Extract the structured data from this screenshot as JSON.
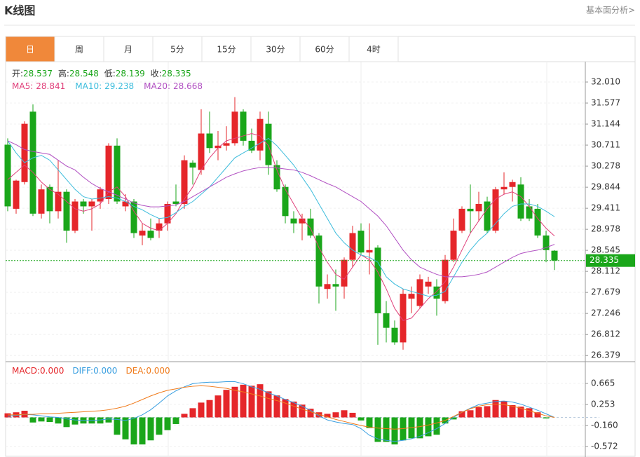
{
  "header": {
    "title": "K线图",
    "link": "基本面分析>"
  },
  "tabs": {
    "items": [
      "日",
      "周",
      "月",
      "5分",
      "15分",
      "30分",
      "60分",
      "4时"
    ],
    "active": 0
  },
  "chart_data": [
    {
      "type": "candlestick",
      "ohlc_labels": [
        "开:",
        "高:",
        "低:",
        "收:"
      ],
      "up_color": "#e5262a",
      "down_color": "#1aa61a",
      "open": [
        30.72,
        29.4,
        29.95,
        31.4,
        29.3,
        29.85,
        29.35,
        29.75,
        28.95,
        29.55,
        29.45,
        29.55,
        29.6,
        30.7,
        29.45,
        29.55,
        28.85,
        28.95,
        28.95,
        29.1,
        29.55,
        29.5,
        30.35,
        30.2,
        30.95,
        30.65,
        30.7,
        30.75,
        31.4,
        30.8,
        30.6,
        31.15,
        30.3,
        29.85,
        29.2,
        29.1,
        29.2,
        28.85,
        27.75,
        27.85,
        27.8,
        28.35,
        28.95,
        28.5,
        28.6,
        27.25,
        26.95,
        26.65,
        27.55,
        27.4,
        27.8,
        27.8,
        27.5,
        28.35,
        28.95,
        29.4,
        29.35,
        29.55,
        28.95,
        29.8,
        29.85,
        29.9,
        29.45,
        29.4,
        28.85,
        28.537
      ],
      "high": [
        30.85,
        30.0,
        31.2,
        31.55,
        29.9,
        29.9,
        30.4,
        29.8,
        29.6,
        29.6,
        29.6,
        29.85,
        30.75,
        30.85,
        29.7,
        29.6,
        29.1,
        29.2,
        29.2,
        29.55,
        29.9,
        30.5,
        30.4,
        31.45,
        31.4,
        31.0,
        31.1,
        31.7,
        31.45,
        31.05,
        31.4,
        31.4,
        30.4,
        29.9,
        29.35,
        29.3,
        29.4,
        28.9,
        28.05,
        28.15,
        28.4,
        29.05,
        29.1,
        29.1,
        28.65,
        27.5,
        27.1,
        27.75,
        27.8,
        28.05,
        28.0,
        27.95,
        28.45,
        29.2,
        29.45,
        29.9,
        29.75,
        29.65,
        29.85,
        30.15,
        30.0,
        30.05,
        29.6,
        29.5,
        28.95,
        28.548
      ],
      "low": [
        29.35,
        29.3,
        29.9,
        29.25,
        29.2,
        29.1,
        29.2,
        28.7,
        28.9,
        29.3,
        28.95,
        29.4,
        29.5,
        29.5,
        29.35,
        28.8,
        28.65,
        28.75,
        28.8,
        28.95,
        29.45,
        29.4,
        29.9,
        30.1,
        30.55,
        30.4,
        30.6,
        30.7,
        30.7,
        30.55,
        30.4,
        30.1,
        29.75,
        29.1,
        28.9,
        28.75,
        28.8,
        27.45,
        27.55,
        27.3,
        27.55,
        28.2,
        28.45,
        28.05,
        26.6,
        26.65,
        26.6,
        26.5,
        27.25,
        27.35,
        27.65,
        27.2,
        27.45,
        28.3,
        28.9,
        28.9,
        29.15,
        28.9,
        28.9,
        29.7,
        29.55,
        29.15,
        29.15,
        28.8,
        28.3,
        28.139
      ],
      "close": [
        29.45,
        29.98,
        31.15,
        29.3,
        29.8,
        29.35,
        29.75,
        28.95,
        29.55,
        29.45,
        29.55,
        29.8,
        30.7,
        29.55,
        29.55,
        28.9,
        28.95,
        28.8,
        29.1,
        29.5,
        29.5,
        30.4,
        30.25,
        30.95,
        30.65,
        30.7,
        30.75,
        31.4,
        30.8,
        30.6,
        31.25,
        30.3,
        29.8,
        29.25,
        29.1,
        29.2,
        28.85,
        27.8,
        27.85,
        27.8,
        28.35,
        28.9,
        28.5,
        28.55,
        27.25,
        26.95,
        26.65,
        27.65,
        27.65,
        27.95,
        27.9,
        27.55,
        28.35,
        28.95,
        29.4,
        29.35,
        29.5,
        28.95,
        29.8,
        29.85,
        29.95,
        29.2,
        29.2,
        28.85,
        28.55,
        28.335
      ],
      "series": [
        {
          "name": "MA5:",
          "color": "#e0407a",
          "values": [
            30.0,
            30.15,
            30.3,
            30.15,
            29.95,
            29.8,
            29.7,
            29.55,
            29.4,
            29.35,
            29.4,
            29.5,
            29.75,
            29.85,
            29.65,
            29.35,
            29.1,
            29.0,
            28.95,
            29.1,
            29.3,
            29.6,
            29.85,
            30.2,
            30.45,
            30.65,
            30.8,
            30.85,
            30.9,
            30.95,
            30.9,
            30.7,
            30.2,
            29.8,
            29.5,
            29.2,
            29.0,
            28.6,
            28.3,
            28.05,
            27.95,
            28.2,
            28.45,
            28.35,
            28.1,
            27.75,
            27.35,
            27.1,
            27.15,
            27.35,
            27.55,
            27.7,
            27.9,
            28.2,
            28.55,
            28.9,
            29.15,
            29.4,
            29.6,
            29.7,
            29.75,
            29.65,
            29.45,
            29.2,
            29.0,
            28.841
          ]
        },
        {
          "name": "MA10:",
          "color": "#3cbcdc",
          "values": [
            30.8,
            30.55,
            30.35,
            30.45,
            30.5,
            30.4,
            30.2,
            30.0,
            29.8,
            29.65,
            29.6,
            29.62,
            29.65,
            29.62,
            29.55,
            29.45,
            29.38,
            29.28,
            29.2,
            29.22,
            29.32,
            29.45,
            29.55,
            29.7,
            29.85,
            30.05,
            30.25,
            30.45,
            30.55,
            30.65,
            30.75,
            30.85,
            30.7,
            30.5,
            30.3,
            30.05,
            29.8,
            29.5,
            29.2,
            28.9,
            28.7,
            28.55,
            28.45,
            28.4,
            28.3,
            28.0,
            27.85,
            27.75,
            27.7,
            27.65,
            27.6,
            27.62,
            27.7,
            28.0,
            28.3,
            28.55,
            28.75,
            28.9,
            29.1,
            29.3,
            29.45,
            29.5,
            29.5,
            29.45,
            29.35,
            29.238
          ]
        },
        {
          "name": "MA20:",
          "color": "#b150c2",
          "values": [
            30.8,
            30.72,
            30.62,
            30.58,
            30.55,
            30.52,
            30.4,
            30.28,
            30.2,
            30.05,
            29.92,
            29.82,
            29.75,
            29.68,
            29.6,
            29.52,
            29.47,
            29.44,
            29.44,
            29.46,
            29.48,
            29.55,
            29.65,
            29.75,
            29.85,
            29.95,
            30.05,
            30.12,
            30.18,
            30.22,
            30.25,
            30.25,
            30.24,
            30.22,
            30.2,
            30.15,
            30.08,
            30.0,
            29.92,
            29.85,
            29.75,
            29.65,
            29.55,
            29.4,
            29.25,
            29.05,
            28.8,
            28.55,
            28.35,
            28.2,
            28.12,
            28.05,
            28.0,
            28.0,
            28.0,
            28.02,
            28.05,
            28.1,
            28.2,
            28.3,
            28.4,
            28.48,
            28.52,
            28.55,
            28.6,
            28.668
          ]
        }
      ],
      "ylim": [
        26.267,
        32.4
      ],
      "yticks": [
        {
          "value": 32.01,
          "label": "32.010"
        },
        31.577,
        31.144,
        30.711,
        30.278,
        29.844,
        29.411,
        28.978,
        28.545,
        28.112,
        27.679,
        27.246,
        26.812,
        26.379
      ],
      "grid": true
    },
    {
      "type": "macd",
      "legend": {
        "names": [
          "MACD:",
          "DIFF:",
          "DEA:"
        ],
        "colors": [
          "#e5262a",
          "#3a9fe0",
          "#f07a1a"
        ],
        "values": [
          0,
          0,
          0
        ],
        "value_labels": [
          "0.000",
          "0.000",
          "0.000"
        ]
      },
      "up_color": "#e5262a",
      "down_color": "#1aa61a",
      "values": [
        0.08,
        0.1,
        0.13,
        -0.1,
        -0.08,
        -0.09,
        -0.12,
        -0.19,
        -0.14,
        -0.12,
        -0.12,
        -0.12,
        -0.1,
        -0.34,
        -0.43,
        -0.53,
        -0.53,
        -0.45,
        -0.34,
        -0.25,
        -0.13,
        0.07,
        0.18,
        0.29,
        0.34,
        0.43,
        0.54,
        0.6,
        0.64,
        0.62,
        0.65,
        0.51,
        0.43,
        0.36,
        0.31,
        0.25,
        0.17,
        0.1,
        0.07,
        0.1,
        0.14,
        0.09,
        -0.06,
        -0.21,
        -0.48,
        -0.48,
        -0.53,
        -0.45,
        -0.41,
        -0.41,
        -0.37,
        -0.34,
        -0.12,
        -0.04,
        0.12,
        0.14,
        0.2,
        0.22,
        0.34,
        0.32,
        0.24,
        0.21,
        0.18,
        0.1,
        -0.02,
        0
      ],
      "series": [
        {
          "name": "DIFF",
          "color": "#3a9fe0",
          "values": [
            0.02,
            0.04,
            0.06,
            0.05,
            0.03,
            0.01,
            0.0,
            -0.03,
            -0.05,
            -0.06,
            -0.06,
            -0.05,
            -0.03,
            -0.04,
            -0.06,
            -0.02,
            0.05,
            0.15,
            0.28,
            0.42,
            0.52,
            0.6,
            0.66,
            0.68,
            0.69,
            0.69,
            0.7,
            0.7,
            0.66,
            0.6,
            0.55,
            0.48,
            0.42,
            0.35,
            0.29,
            0.22,
            0.14,
            0.03,
            -0.05,
            -0.09,
            -0.12,
            -0.14,
            -0.22,
            -0.35,
            -0.42,
            -0.45,
            -0.47,
            -0.45,
            -0.42,
            -0.37,
            -0.3,
            -0.22,
            -0.12,
            0.0,
            0.1,
            0.18,
            0.25,
            0.28,
            0.31,
            0.32,
            0.3,
            0.26,
            0.2,
            0.14,
            0.07,
            0
          ]
        },
        {
          "name": "DEA",
          "color": "#f07a1a",
          "values": [
            0.05,
            0.05,
            0.06,
            0.06,
            0.07,
            0.07,
            0.08,
            0.09,
            0.1,
            0.11,
            0.12,
            0.13,
            0.15,
            0.18,
            0.22,
            0.28,
            0.35,
            0.42,
            0.48,
            0.53,
            0.56,
            0.59,
            0.61,
            0.62,
            0.61,
            0.59,
            0.57,
            0.53,
            0.5,
            0.46,
            0.42,
            0.37,
            0.33,
            0.28,
            0.22,
            0.16,
            0.11,
            0.06,
            0.01,
            -0.04,
            -0.08,
            -0.12,
            -0.16,
            -0.19,
            -0.21,
            -0.22,
            -0.23,
            -0.22,
            -0.2,
            -0.18,
            -0.15,
            -0.11,
            -0.06,
            0.02,
            0.1,
            0.17,
            0.22,
            0.25,
            0.26,
            0.25,
            0.22,
            0.18,
            0.13,
            0.08,
            0.03,
            0
          ]
        }
      ],
      "ylim": [
        -0.776,
        1.064
      ],
      "yticks": [
        0.665,
        0.253,
        {
          "value": -0.16,
          "label": "-0.160"
        },
        -0.572
      ],
      "grid": true
    }
  ]
}
